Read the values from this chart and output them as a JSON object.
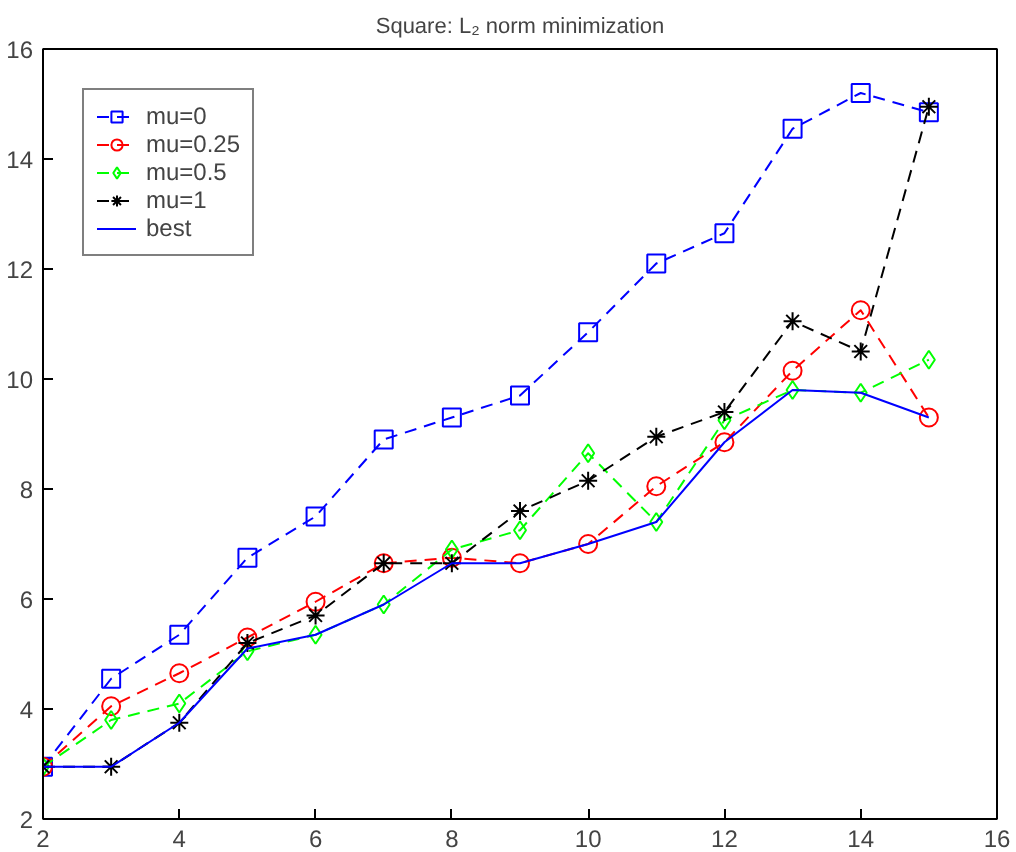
{
  "chart_data": {
    "type": "line",
    "title": "Square: L₂ norm minimization",
    "x": [
      2,
      3,
      4,
      5,
      6,
      7,
      8,
      9,
      10,
      11,
      12,
      13,
      14,
      15
    ],
    "xlim": [
      2,
      16
    ],
    "xticks": [
      2,
      4,
      6,
      8,
      10,
      12,
      14,
      16
    ],
    "ylim": [
      2,
      16
    ],
    "yticks": [
      2,
      4,
      6,
      8,
      10,
      12,
      14,
      16
    ],
    "grid": false,
    "legend": "top left",
    "series": [
      {
        "name": "mu=0",
        "color": "#0000ff",
        "marker": "square",
        "line_style": "dashed",
        "values": [
          2.95,
          4.55,
          5.35,
          6.75,
          7.5,
          8.9,
          9.3,
          9.7,
          10.85,
          12.1,
          12.65,
          14.55,
          15.2,
          14.85
        ]
      },
      {
        "name": "mu=0.25",
        "color": "#ff0000",
        "marker": "circle",
        "line_style": "dashed",
        "values": [
          2.95,
          4.05,
          4.65,
          5.3,
          5.95,
          6.65,
          6.75,
          6.65,
          7.0,
          8.05,
          8.85,
          10.15,
          11.25,
          9.3
        ]
      },
      {
        "name": "mu=0.5",
        "color": "#00ff00",
        "marker": "diamond",
        "line_style": "dashed",
        "values": [
          2.95,
          3.8,
          4.1,
          5.05,
          5.35,
          5.9,
          6.9,
          7.25,
          8.65,
          7.4,
          9.25,
          9.8,
          9.75,
          10.35
        ]
      },
      {
        "name": "mu=1",
        "color": "#000000",
        "marker": "cross",
        "line_style": "dashed",
        "values": [
          2.95,
          2.95,
          3.75,
          5.2,
          5.7,
          6.65,
          6.65,
          7.6,
          8.15,
          8.95,
          9.4,
          11.05,
          10.5,
          14.95
        ]
      },
      {
        "name": "best",
        "color": "#0000ff",
        "marker": "none",
        "line_style": "solid",
        "values": [
          2.95,
          2.95,
          3.75,
          5.1,
          5.35,
          5.9,
          6.65,
          6.65,
          7.0,
          7.4,
          8.85,
          9.8,
          9.75,
          9.3
        ]
      }
    ]
  }
}
